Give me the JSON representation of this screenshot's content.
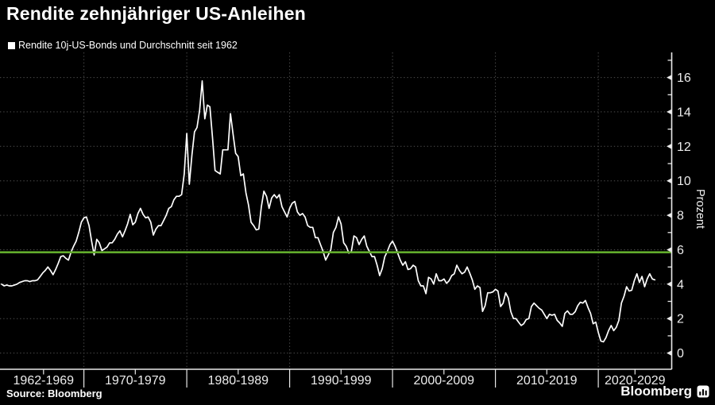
{
  "header": {
    "title": "Rendite zehnjähriger US-Anleihen",
    "legend_label": "Rendite 10j-US-Bonds und Durchschnitt seit 1962"
  },
  "footer": {
    "source_label": "Source: Bloomberg",
    "brand": "Bloomberg"
  },
  "icons": {
    "legend_marker": "filled-square",
    "brand_icon": "bloomberg-terminal"
  },
  "colors": {
    "background": "#000000",
    "series_line": "#ffffff",
    "average_line": "#62ac2c",
    "gridline": "#4c4c4c",
    "axis": "#e9e9e9",
    "text": "#ffffff"
  },
  "chart_data": {
    "type": "line",
    "title": "Rendite zehnjähriger US-Anleihen",
    "ylabel": "Prozent",
    "xlabel": "",
    "grid": true,
    "legend_position": "top-left",
    "ylim": [
      -0.94,
      17.45
    ],
    "xlim": [
      1962,
      2027.1
    ],
    "y_ticks": [
      0,
      2,
      4,
      6,
      8,
      10,
      12,
      14,
      16
    ],
    "y_minor_ticks": [
      1,
      3,
      5,
      7,
      9,
      11,
      13,
      15,
      17
    ],
    "x_categories": [
      "1962-1969",
      "1970-1979",
      "1980-1989",
      "1990-1999",
      "2000-2009",
      "2010-2019",
      "2020-2029"
    ],
    "x_boundaries": [
      1970,
      1980,
      1990,
      2000,
      2010,
      2020
    ],
    "average_line": {
      "name": "Durchschnitt seit 1962",
      "value": 5.85,
      "color": "#62ac2c"
    },
    "series": [
      {
        "name": "Rendite 10j-US-Bonds",
        "color": "#ffffff",
        "start_year": 1962,
        "interval_years": 0.25,
        "unit": "Prozent",
        "values": [
          4.0,
          3.9,
          3.95,
          3.9,
          3.9,
          3.95,
          4.0,
          4.1,
          4.15,
          4.2,
          4.2,
          4.15,
          4.2,
          4.2,
          4.25,
          4.45,
          4.65,
          4.8,
          5.0,
          4.8,
          4.55,
          4.85,
          5.2,
          5.6,
          5.65,
          5.5,
          5.4,
          5.85,
          6.2,
          6.5,
          7.0,
          7.6,
          7.85,
          7.9,
          7.4,
          6.5,
          5.7,
          6.6,
          6.4,
          5.95,
          6.05,
          6.15,
          6.4,
          6.4,
          6.6,
          6.9,
          7.1,
          6.75,
          7.1,
          7.5,
          8.05,
          7.45,
          7.6,
          8.1,
          8.4,
          8.05,
          7.85,
          7.9,
          7.6,
          6.85,
          7.2,
          7.4,
          7.4,
          7.7,
          8.0,
          8.4,
          8.5,
          8.9,
          9.1,
          9.1,
          9.2,
          10.4,
          12.75,
          9.8,
          11.5,
          12.84,
          13.1,
          14.1,
          15.8,
          13.6,
          14.4,
          14.3,
          12.5,
          10.6,
          10.5,
          10.4,
          11.8,
          11.8,
          11.8,
          13.9,
          12.7,
          11.6,
          11.4,
          10.3,
          10.4,
          9.3,
          8.6,
          7.6,
          7.4,
          7.15,
          7.2,
          8.5,
          9.4,
          9.1,
          8.4,
          9.0,
          9.2,
          9.0,
          9.2,
          8.5,
          8.2,
          7.9,
          8.4,
          8.7,
          8.8,
          8.2,
          8.0,
          8.1,
          7.9,
          7.4,
          7.3,
          7.3,
          6.7,
          6.7,
          6.3,
          5.9,
          5.4,
          5.7,
          6.0,
          7.0,
          7.3,
          7.9,
          7.5,
          6.4,
          6.2,
          5.8,
          5.9,
          6.8,
          6.7,
          6.3,
          6.6,
          6.8,
          6.2,
          5.9,
          5.6,
          5.6,
          5.1,
          4.5,
          4.9,
          5.6,
          5.9,
          6.3,
          6.5,
          6.2,
          5.8,
          5.4,
          5.1,
          5.3,
          4.85,
          4.9,
          5.1,
          5.0,
          4.2,
          3.9,
          3.9,
          3.45,
          4.4,
          4.3,
          4.0,
          4.6,
          4.2,
          4.2,
          4.3,
          4.05,
          4.2,
          4.5,
          4.6,
          5.1,
          4.8,
          4.6,
          4.7,
          5.0,
          4.65,
          4.25,
          3.7,
          3.9,
          3.8,
          2.42,
          2.75,
          3.5,
          3.5,
          3.55,
          3.7,
          3.6,
          2.7,
          2.9,
          3.5,
          3.2,
          2.4,
          2.0,
          2.0,
          1.8,
          1.6,
          1.7,
          1.95,
          2.0,
          2.7,
          2.9,
          2.75,
          2.6,
          2.5,
          2.25,
          2.0,
          2.25,
          2.2,
          2.25,
          1.9,
          1.75,
          1.55,
          2.3,
          2.45,
          2.25,
          2.25,
          2.4,
          2.75,
          2.95,
          2.9,
          3.05,
          2.65,
          2.3,
          1.7,
          1.8,
          1.2,
          0.7,
          0.65,
          0.9,
          1.3,
          1.6,
          1.3,
          1.5,
          1.9,
          2.9,
          3.3,
          3.85,
          3.6,
          3.65,
          4.2,
          4.6,
          4.1,
          4.45,
          3.85,
          4.3,
          4.6,
          4.3,
          4.25
        ]
      }
    ]
  }
}
